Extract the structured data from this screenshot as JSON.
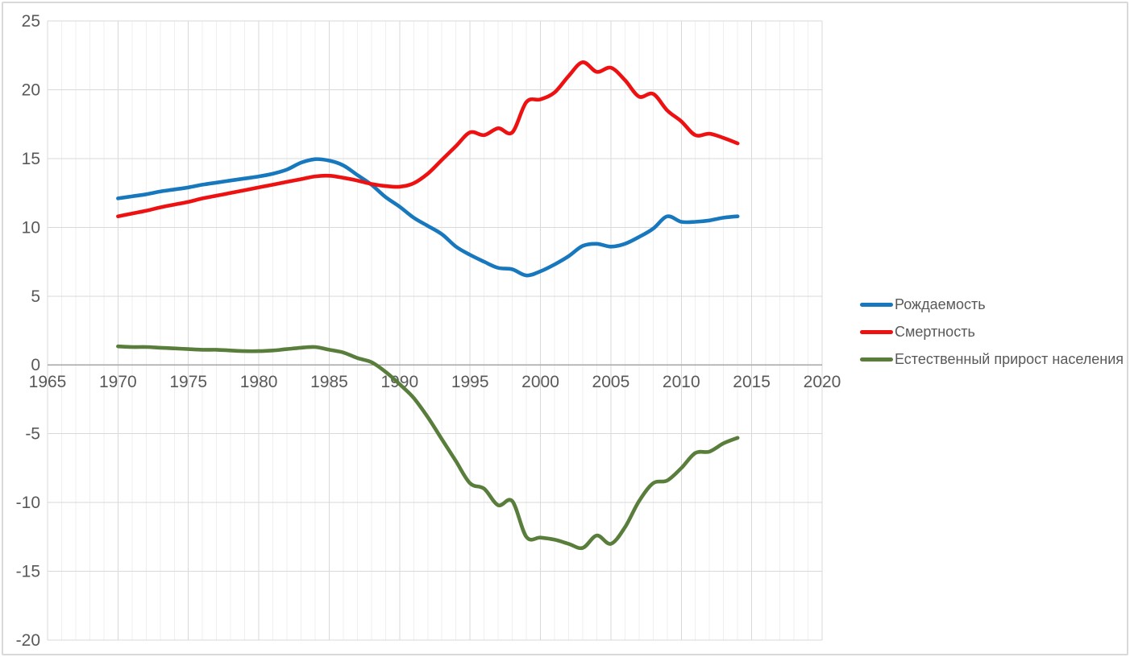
{
  "chart_data": {
    "type": "line",
    "title": "",
    "xlabel": "",
    "ylabel": "",
    "xlim": [
      1965,
      2020
    ],
    "ylim": [
      -20,
      25
    ],
    "x_ticks": [
      1965,
      1970,
      1975,
      1980,
      1985,
      1990,
      1995,
      2000,
      2005,
      2010,
      2015,
      2020
    ],
    "y_ticks": [
      25,
      20,
      15,
      10,
      5,
      0,
      -5,
      -10,
      -15,
      -20
    ],
    "grid": "horizontal major every 5; vertical minor every year, major every 5 years",
    "legend_position": "right",
    "smooth_lines": true,
    "years": [
      1970,
      1971,
      1972,
      1973,
      1974,
      1975,
      1976,
      1977,
      1978,
      1979,
      1980,
      1981,
      1982,
      1983,
      1984,
      1985,
      1986,
      1987,
      1988,
      1989,
      1990,
      1991,
      1992,
      1993,
      1994,
      1995,
      1996,
      1997,
      1998,
      1999,
      2000,
      2001,
      2002,
      2003,
      2004,
      2005,
      2006,
      2007,
      2008,
      2009,
      2010,
      2011,
      2012,
      2013,
      2014
    ],
    "series": [
      {
        "name": "Рождаемость",
        "color": "#1878BE",
        "values": [
          12.1,
          12.25,
          12.4,
          12.6,
          12.75,
          12.9,
          13.1,
          13.25,
          13.4,
          13.55,
          13.7,
          13.9,
          14.2,
          14.7,
          14.95,
          14.85,
          14.5,
          13.8,
          13.1,
          12.2,
          11.5,
          10.7,
          10.1,
          9.5,
          8.6,
          8.0,
          7.5,
          7.05,
          6.95,
          6.5,
          6.8,
          7.3,
          7.9,
          8.65,
          8.8,
          8.6,
          8.8,
          9.3,
          9.9,
          10.8,
          10.4,
          10.4,
          10.5,
          10.7,
          10.8
        ]
      },
      {
        "name": "Смертность",
        "color": "#EE1111",
        "values": [
          10.8,
          11.0,
          11.2,
          11.45,
          11.65,
          11.85,
          12.1,
          12.3,
          12.5,
          12.7,
          12.9,
          13.1,
          13.3,
          13.5,
          13.7,
          13.75,
          13.6,
          13.4,
          13.15,
          13.0,
          12.95,
          13.2,
          13.9,
          14.9,
          15.9,
          16.9,
          16.7,
          17.2,
          16.9,
          19.1,
          19.3,
          19.8,
          21.0,
          22.0,
          21.3,
          21.6,
          20.7,
          19.5,
          19.7,
          18.5,
          17.7,
          16.7,
          16.8,
          16.5,
          16.1
        ]
      },
      {
        "name": "Естественный прирост населения",
        "color": "#597D3B",
        "values": [
          1.35,
          1.3,
          1.3,
          1.25,
          1.2,
          1.15,
          1.1,
          1.1,
          1.05,
          1.0,
          1.0,
          1.05,
          1.15,
          1.25,
          1.3,
          1.1,
          0.9,
          0.5,
          0.2,
          -0.5,
          -1.4,
          -2.4,
          -3.8,
          -5.4,
          -7.0,
          -8.6,
          -9.0,
          -10.2,
          -9.9,
          -12.5,
          -12.55,
          -12.7,
          -13.0,
          -13.3,
          -12.4,
          -13.0,
          -11.8,
          -9.9,
          -8.6,
          -8.4,
          -7.5,
          -6.4,
          -6.3,
          -5.7,
          -5.3
        ]
      }
    ],
    "colors": {
      "axis_text": "#595959",
      "grid_major": "#D9D9D9",
      "grid_minor": "#EFEFEF",
      "zero_axis": "#A6A6A6",
      "frame_border": "#D9D9D9",
      "background": "#FFFFFF"
    }
  }
}
